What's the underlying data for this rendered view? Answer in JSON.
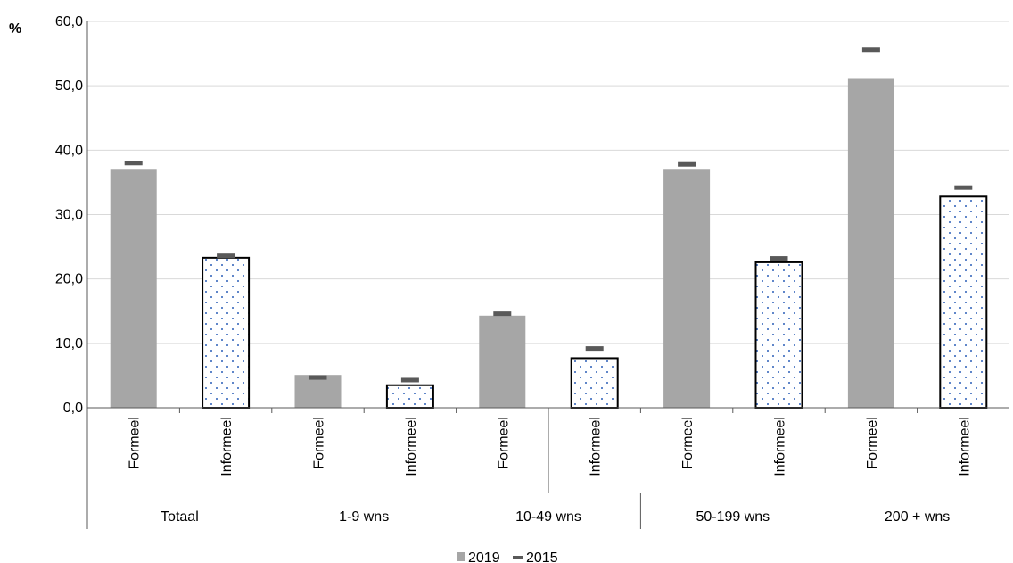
{
  "chart_data": {
    "type": "bar",
    "ylabel": "%",
    "ylim": [
      0,
      60
    ],
    "yticks": [
      0,
      10,
      20,
      30,
      40,
      50,
      60
    ],
    "ytick_labels": [
      "0,0",
      "10,0",
      "20,0",
      "30,0",
      "40,0",
      "50,0",
      "60,0"
    ],
    "grid": true,
    "legend_position": "bottom",
    "groups": [
      "Totaal",
      "1-9 wns",
      "10-49 wns",
      "50-199 wns",
      "200 + wns"
    ],
    "categories": [
      "Formeel",
      "Informeel",
      "Formeel",
      "Informeel",
      "Formeel",
      "Informeel",
      "Formeel",
      "Informeel",
      "Formeel",
      "Informeel"
    ],
    "series": [
      {
        "name": "2019",
        "marker": "bar",
        "values": [
          37.1,
          23.3,
          5.1,
          3.5,
          14.3,
          7.7,
          37.1,
          22.6,
          51.2,
          32.8
        ]
      },
      {
        "name": "2015",
        "marker": "dash",
        "values": [
          38.0,
          23.6,
          4.7,
          4.3,
          14.6,
          9.2,
          37.8,
          23.2,
          55.6,
          34.2
        ]
      }
    ],
    "colors": {
      "bar_fill": "#a6a6a6",
      "dash": "#595959",
      "dots": "#2e5fb8",
      "grid": "#d9d9d9",
      "axis": "#595959"
    }
  }
}
